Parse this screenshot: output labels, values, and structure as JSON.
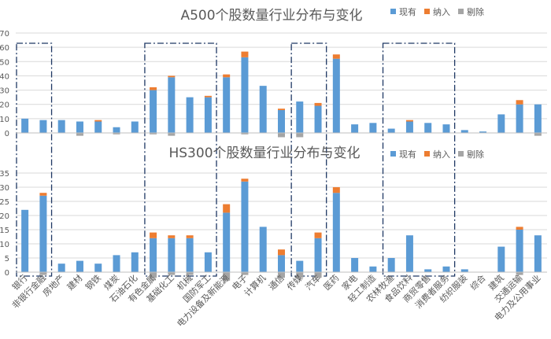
{
  "colors": {
    "existing": "#5B9BD5",
    "added": "#ED7D31",
    "removed": "#A5A5A5",
    "grid": "#D9D9D9",
    "axis_text": "#595959",
    "dash_box": "#1F3864"
  },
  "legend": {
    "existing": "现有",
    "added": "纳入",
    "removed": "剔除"
  },
  "chart_data": [
    {
      "type": "bar",
      "title": "A500个股数量行业分布与变化",
      "ylim": [
        0,
        70
      ],
      "yticks": [
        0,
        10,
        20,
        30,
        40,
        50,
        60,
        70
      ],
      "grid": true,
      "legend_position": "top-right",
      "categories": [
        "银行",
        "非银行金融",
        "房地产",
        "建材",
        "钢铁",
        "煤炭",
        "石油石化",
        "有色金属",
        "基础化工",
        "机械",
        "国防军工",
        "电力设备及新能源",
        "电子",
        "计算机",
        "通信",
        "传媒",
        "汽车",
        "医药",
        "家电",
        "轻工制造",
        "农林牧渔",
        "食品饮料",
        "商贸零售",
        "消费者服务",
        "纺织服装",
        "综合",
        "建筑",
        "交通运输",
        "电力及公用事业"
      ],
      "series": [
        {
          "name": "现有",
          "values": [
            10,
            9,
            9,
            8,
            8,
            4,
            8,
            30,
            39,
            25,
            25,
            39,
            53,
            33,
            16,
            22,
            19,
            52,
            6,
            7,
            3,
            8,
            7,
            6,
            2,
            1,
            13,
            20,
            20
          ]
        },
        {
          "name": "纳入",
          "values": [
            0,
            0,
            0,
            0,
            1,
            0,
            0,
            2,
            1,
            0,
            1,
            2,
            4,
            0,
            1,
            0,
            2,
            3,
            0,
            0,
            0,
            1,
            0,
            0,
            0,
            0,
            0,
            3,
            0
          ]
        },
        {
          "name": "剔除",
          "values": [
            0,
            0,
            0,
            2,
            0,
            1,
            0,
            1,
            2,
            0,
            0,
            0,
            1,
            0,
            3,
            3,
            0,
            0,
            0,
            0,
            0,
            0,
            0,
            0,
            0,
            0,
            0,
            0,
            2
          ]
        }
      ]
    },
    {
      "type": "bar",
      "title": "HS300个股数量行业分布与变化",
      "ylim": [
        0,
        35
      ],
      "yticks": [
        0,
        5,
        10,
        15,
        20,
        25,
        30,
        35
      ],
      "grid": true,
      "legend_position": "top-right",
      "categories": [
        "银行",
        "非银行金融",
        "房地产",
        "建材",
        "钢铁",
        "煤炭",
        "石油石化",
        "有色金属",
        "基础化工",
        "机械",
        "国防军工",
        "电力设备及新能源",
        "电子",
        "计算机",
        "通信",
        "传媒",
        "汽车",
        "医药",
        "家电",
        "轻工制造",
        "农林牧渔",
        "食品饮料",
        "商贸零售",
        "消费者服务",
        "纺织服装",
        "综合",
        "建筑",
        "交通运输",
        "电力及公用事业"
      ],
      "series": [
        {
          "name": "现有",
          "values": [
            22,
            27,
            3,
            4,
            3,
            6,
            7,
            12,
            12,
            12,
            7,
            21,
            32,
            16,
            6,
            4,
            12,
            28,
            5,
            2,
            5,
            13,
            1,
            2,
            1,
            0,
            9,
            15,
            13
          ]
        },
        {
          "name": "纳入",
          "values": [
            0,
            1,
            0,
            0,
            0,
            0,
            0,
            2,
            1,
            1,
            0,
            3,
            1,
            0,
            2,
            0,
            2,
            2,
            0,
            0,
            0,
            0,
            0,
            0,
            0,
            0,
            0,
            1,
            0
          ]
        },
        {
          "name": "剔除",
          "values": [
            0,
            1,
            0,
            0,
            0,
            0,
            0,
            2,
            1,
            1,
            0,
            3,
            1,
            0,
            2,
            2,
            2,
            0,
            0,
            0,
            0,
            0,
            0,
            0,
            0,
            0,
            0,
            1,
            0
          ]
        }
      ]
    }
  ]
}
